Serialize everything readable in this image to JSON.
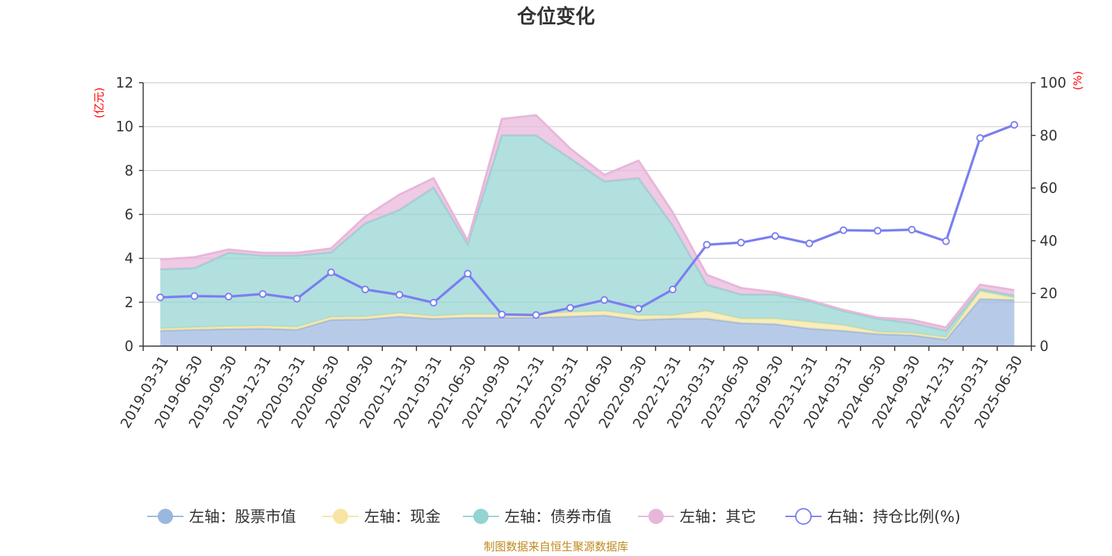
{
  "chart_data": {
    "type": "area",
    "title": "仓位变化",
    "left_axis_unit": "(亿元)",
    "right_axis_unit": "(%)",
    "left_ylim": [
      0,
      12
    ],
    "left_yticks": [
      0,
      2,
      4,
      6,
      8,
      10,
      12
    ],
    "right_ylim": [
      0,
      100
    ],
    "right_yticks": [
      0,
      20,
      40,
      60,
      80,
      100
    ],
    "grid": true,
    "legend_position": "bottom",
    "categories": [
      "2019-03-31",
      "2019-06-30",
      "2019-09-30",
      "2019-12-31",
      "2020-03-31",
      "2020-06-30",
      "2020-09-30",
      "2020-12-31",
      "2021-03-31",
      "2021-06-30",
      "2021-09-30",
      "2021-12-31",
      "2022-03-31",
      "2022-06-30",
      "2022-09-30",
      "2022-12-31",
      "2023-03-31",
      "2023-06-30",
      "2023-09-30",
      "2023-12-31",
      "2024-03-31",
      "2024-06-30",
      "2024-09-30",
      "2024-12-31",
      "2025-03-31",
      "2025-06-30"
    ],
    "series": [
      {
        "name": "左轴：股票市值",
        "axis": "left",
        "color": "#9bb7e0",
        "values": [
          0.7,
          0.75,
          0.78,
          0.8,
          0.75,
          1.2,
          1.22,
          1.35,
          1.25,
          1.3,
          1.3,
          1.3,
          1.35,
          1.4,
          1.2,
          1.25,
          1.25,
          1.05,
          1.0,
          0.8,
          0.7,
          0.55,
          0.5,
          0.3,
          2.15,
          2.1
        ]
      },
      {
        "name": "左轴：现金",
        "axis": "left",
        "color": "#f7e6a2",
        "values": [
          0.1,
          0.1,
          0.12,
          0.12,
          0.12,
          0.12,
          0.12,
          0.15,
          0.12,
          0.15,
          0.15,
          0.15,
          0.2,
          0.2,
          0.2,
          0.15,
          0.35,
          0.2,
          0.25,
          0.3,
          0.25,
          0.1,
          0.1,
          0.1,
          0.35,
          0.1
        ]
      },
      {
        "name": "左轴：债券市值",
        "axis": "left",
        "color": "#93d4d2",
        "values": [
          2.7,
          2.7,
          3.35,
          3.2,
          3.25,
          2.95,
          4.25,
          4.7,
          5.85,
          3.2,
          8.15,
          8.15,
          7.0,
          5.9,
          6.25,
          4.1,
          1.2,
          1.1,
          1.1,
          0.95,
          0.65,
          0.6,
          0.45,
          0.3,
          0.1,
          0.1
        ]
      },
      {
        "name": "左轴：其它",
        "axis": "left",
        "color": "#e8b6d9",
        "values": [
          0.45,
          0.5,
          0.15,
          0.13,
          0.13,
          0.18,
          0.31,
          0.7,
          0.43,
          0.15,
          0.75,
          0.92,
          0.45,
          0.3,
          0.8,
          0.6,
          0.45,
          0.3,
          0.1,
          0.05,
          0.05,
          0.05,
          0.15,
          0.15,
          0.2,
          0.25
        ]
      },
      {
        "name": "右轴：持仓比例(%)",
        "axis": "right",
        "color": "#7b7ff0",
        "type": "line",
        "values": [
          18.5,
          19,
          18.8,
          19.8,
          18,
          28,
          21.5,
          19.5,
          16.5,
          27.5,
          12,
          11.8,
          14.5,
          17.5,
          14.2,
          21.5,
          38.5,
          39.3,
          41.8,
          39,
          44,
          43.8,
          44.2,
          39.8,
          79,
          84
        ]
      }
    ]
  },
  "source_text": "制图数据来自恒生聚源数据库"
}
